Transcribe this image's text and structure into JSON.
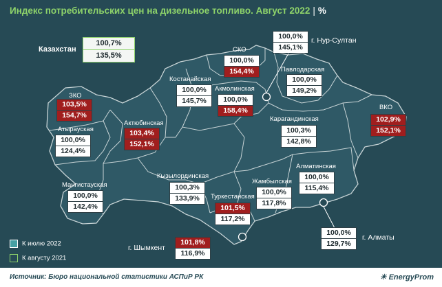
{
  "title": {
    "text": "Индекс потребительских цен на дизельное топливо. Август 2022",
    "unit": "%"
  },
  "colors": {
    "background": "#264a55",
    "region_fill": "#2f5966",
    "region_stroke": "#c8d4d6",
    "title": "#8ed36a",
    "increase": "#a01e1e",
    "stable": "#ffffff",
    "legend_july": "#45a0a3"
  },
  "kazakhstan": {
    "label": "Казахстан",
    "vs_july": "100,7%",
    "vs_august": "135,5%"
  },
  "regions": [
    {
      "id": "zko",
      "label": "ЗКО",
      "vs_july": "103,5%",
      "vs_august": "154,7%",
      "july_status": "up",
      "aug_status": "up"
    },
    {
      "id": "atyrau",
      "label": "Атырауская",
      "vs_july": "100,0%",
      "vs_august": "124,4%",
      "july_status": "flat",
      "aug_status": "flat"
    },
    {
      "id": "mangistau",
      "label": "Мангистауская",
      "vs_july": "100,0%",
      "vs_august": "142,4%",
      "july_status": "flat",
      "aug_status": "flat"
    },
    {
      "id": "aktobe",
      "label": "Актюбинская",
      "vs_july": "103,4%",
      "vs_august": "152,1%",
      "july_status": "up",
      "aug_status": "up"
    },
    {
      "id": "kostanay",
      "label": "Костанайская",
      "vs_july": "100,0%",
      "vs_august": "145,7%",
      "july_status": "flat",
      "aug_status": "flat"
    },
    {
      "id": "sko",
      "label": "СКО",
      "vs_july": "100,0%",
      "vs_august": "154,4%",
      "july_status": "flat",
      "aug_status": "up"
    },
    {
      "id": "akmola",
      "label": "Акмолинская",
      "vs_july": "100,0%",
      "vs_august": "158,4%",
      "july_status": "flat",
      "aug_status": "up"
    },
    {
      "id": "nursultan",
      "label": "г. Нур-Султан",
      "vs_july": "100,0%",
      "vs_august": "145,1%",
      "july_status": "flat",
      "aug_status": "flat"
    },
    {
      "id": "pavlodar",
      "label": "Павлодарская",
      "vs_july": "100,0%",
      "vs_august": "149,2%",
      "july_status": "flat",
      "aug_status": "flat"
    },
    {
      "id": "vko",
      "label": "ВКО",
      "vs_july": "102,9%",
      "vs_august": "152,1%",
      "july_status": "up",
      "aug_status": "up"
    },
    {
      "id": "karaganda",
      "label": "Карагандинская",
      "vs_july": "100,3%",
      "vs_august": "142,8%",
      "july_status": "flat",
      "aug_status": "flat"
    },
    {
      "id": "kyzylorda",
      "label": "Кызылординская",
      "vs_july": "100,3%",
      "vs_august": "133,9%",
      "july_status": "flat",
      "aug_status": "flat"
    },
    {
      "id": "zhambyl",
      "label": "Жамбылская",
      "vs_july": "100,0%",
      "vs_august": "117,8%",
      "july_status": "flat",
      "aug_status": "flat"
    },
    {
      "id": "turkestan",
      "label": "Туркестанская",
      "vs_july": "101,5%",
      "vs_august": "117,2%",
      "july_status": "up",
      "aug_status": "flat"
    },
    {
      "id": "almaty_reg",
      "label": "Алматинская",
      "vs_july": "100,0%",
      "vs_august": "115,4%",
      "july_status": "flat",
      "aug_status": "flat"
    },
    {
      "id": "almaty_city",
      "label": "г. Алматы",
      "vs_july": "100,0%",
      "vs_august": "129,7%",
      "july_status": "flat",
      "aug_status": "flat"
    },
    {
      "id": "shymkent",
      "label": "г. Шымкент",
      "vs_july": "101,8%",
      "vs_august": "116,9%",
      "july_status": "up",
      "aug_status": "flat"
    }
  ],
  "legend": {
    "july": "К июлю 2022",
    "august": "К августу 2021"
  },
  "footer": {
    "source": "Источник: Бюро национальной статистики АСПиР РК",
    "brand": "EnergyProm"
  }
}
